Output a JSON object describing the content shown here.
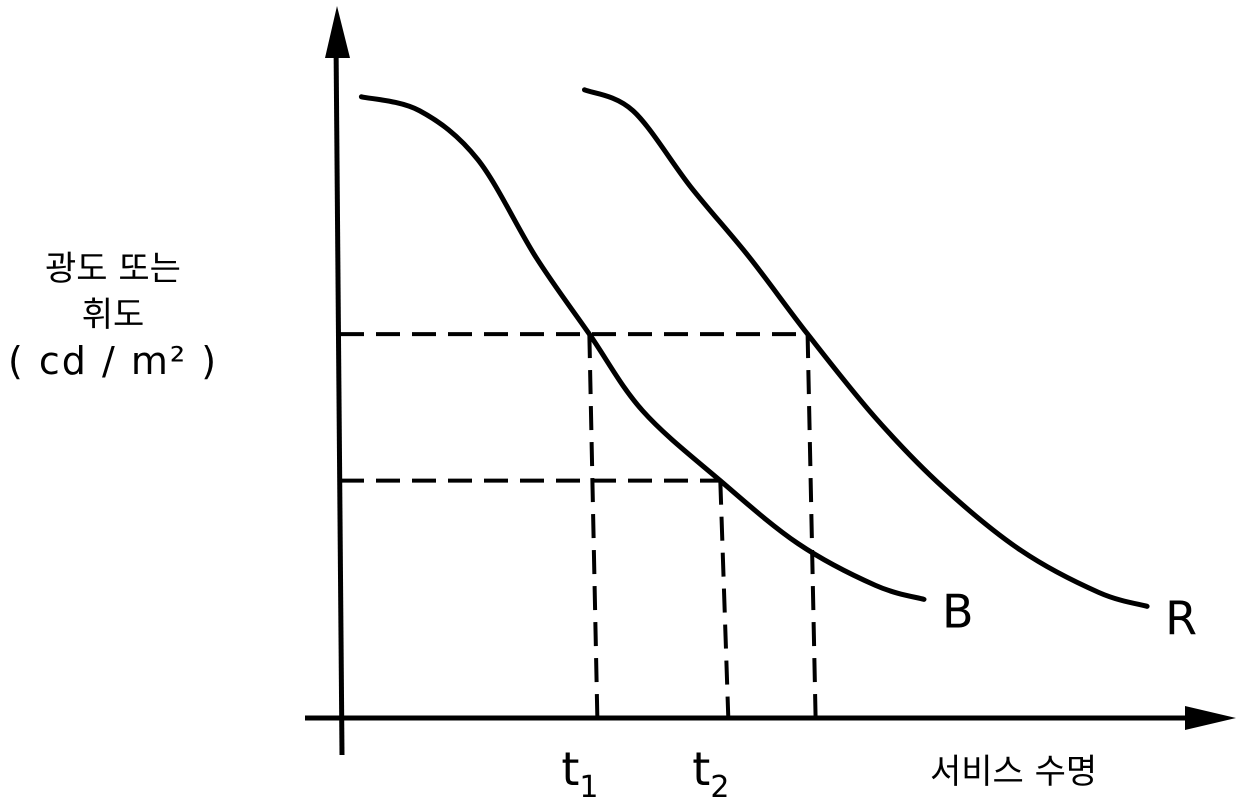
{
  "chart_data": {
    "type": "line",
    "ylabel_lines": [
      "광도 또는",
      "휘도",
      "( cd / m² )"
    ],
    "xlabel": "서비스 수명",
    "x_tick_labels": [
      {
        "main": "t",
        "sub": "1",
        "x": 2.55
      },
      {
        "main": "t",
        "sub": "2",
        "x": 3.9
      }
    ],
    "xlim": [
      0,
      9
    ],
    "ylim": [
      0,
      10
    ],
    "grid": false,
    "legend": "inline-end-labels",
    "series": [
      {
        "name": "B",
        "x": [
          0.2,
          0.8,
          1.4,
          2.0,
          2.55,
          3.1,
          3.9,
          4.7,
          5.5,
          6.0
        ],
        "y": [
          8.9,
          8.7,
          8.0,
          6.6,
          5.5,
          4.4,
          3.4,
          2.5,
          1.9,
          1.7
        ]
      },
      {
        "name": "R",
        "x": [
          2.5,
          3.0,
          3.6,
          4.2,
          4.8,
          5.5,
          6.2,
          7.0,
          7.8,
          8.3
        ],
        "y": [
          9.0,
          8.7,
          7.6,
          6.6,
          5.5,
          4.3,
          3.3,
          2.4,
          1.8,
          1.6
        ]
      }
    ],
    "reference_lines": [
      {
        "y": 5.5,
        "x_from": 0,
        "x_to": [
          2.55,
          4.8
        ]
      },
      {
        "y": 3.4,
        "x_from": 0,
        "x_to": [
          3.9
        ]
      }
    ]
  }
}
